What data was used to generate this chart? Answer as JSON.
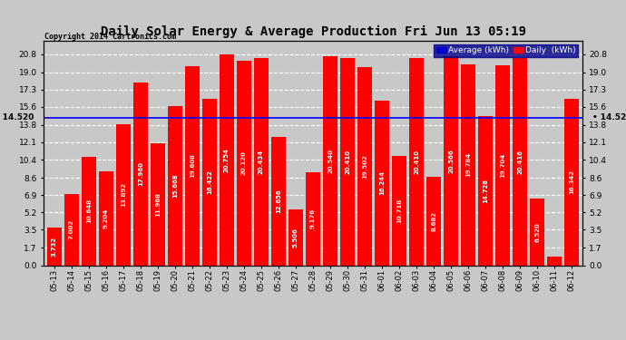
{
  "title": "Daily Solar Energy & Average Production Fri Jun 13 05:19",
  "copyright": "Copyright 2014 Cartronics.com",
  "average_value": 14.52,
  "average_label": "14.520",
  "bar_color": "#FF0000",
  "average_line_color": "#0000FF",
  "background_color": "#C8C8C8",
  "grid_color": "white",
  "categories": [
    "05-13",
    "05-14",
    "05-15",
    "05-16",
    "05-17",
    "05-18",
    "05-19",
    "05-20",
    "05-21",
    "05-22",
    "05-23",
    "05-24",
    "05-25",
    "05-26",
    "05-27",
    "05-28",
    "05-29",
    "05-30",
    "05-31",
    "06-01",
    "06-02",
    "06-03",
    "06-04",
    "06-05",
    "06-06",
    "06-07",
    "06-08",
    "06-09",
    "06-10",
    "06-11",
    "06-12"
  ],
  "values": [
    3.732,
    7.002,
    10.648,
    9.204,
    13.892,
    17.96,
    11.968,
    15.668,
    19.608,
    16.422,
    20.754,
    20.12,
    20.434,
    12.656,
    5.506,
    9.176,
    20.54,
    20.41,
    19.502,
    16.244,
    10.718,
    20.41,
    8.682,
    20.566,
    19.784,
    14.728,
    19.704,
    20.416,
    6.52,
    0.814,
    16.342
  ],
  "ylim": [
    0,
    22.1
  ],
  "yticks": [
    0.0,
    1.7,
    3.5,
    5.2,
    6.9,
    8.6,
    10.4,
    12.1,
    13.8,
    15.6,
    17.3,
    19.0,
    20.8
  ],
  "legend_avg_color": "#0000CD",
  "legend_daily_color": "#FF0000",
  "legend_avg_text": "Average (kWh)",
  "legend_daily_text": "Daily  (kWh)"
}
